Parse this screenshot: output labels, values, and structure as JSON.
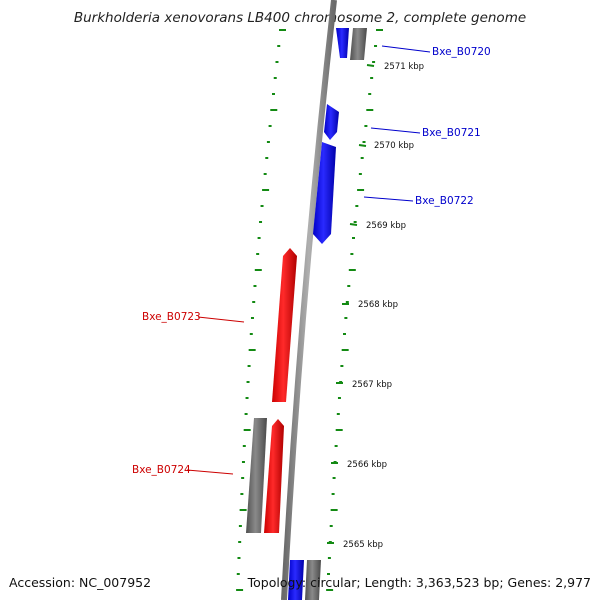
{
  "title": "Burkholderia xenovorans LB400 chromosome 2, complete genome",
  "footer": {
    "accession": "Accession: NC_007952",
    "topology": "Topology: circular; Length: 3,363,523 bp; Genes: 2,977"
  },
  "colors": {
    "backbone": "#8c8c8c",
    "forward_gene": "#0000ff",
    "reverse_gene": "#ff0000",
    "other_gene": "#707070",
    "ticks": "#138a13"
  },
  "kbp_labels": [
    "2571 kbp",
    "2570 kbp",
    "2569 kbp",
    "2568 kbp",
    "2567 kbp",
    "2566 kbp",
    "2565 kbp"
  ],
  "gene_labels": [
    {
      "text": "Bxe_B0720",
      "color": "#0000cc"
    },
    {
      "text": "Bxe_B0721",
      "color": "#0000cc"
    },
    {
      "text": "Bxe_B0722",
      "color": "#0000cc"
    },
    {
      "text": "Bxe_B0723",
      "color": "#cc0000"
    },
    {
      "text": "Bxe_B0724",
      "color": "#cc0000"
    }
  ]
}
